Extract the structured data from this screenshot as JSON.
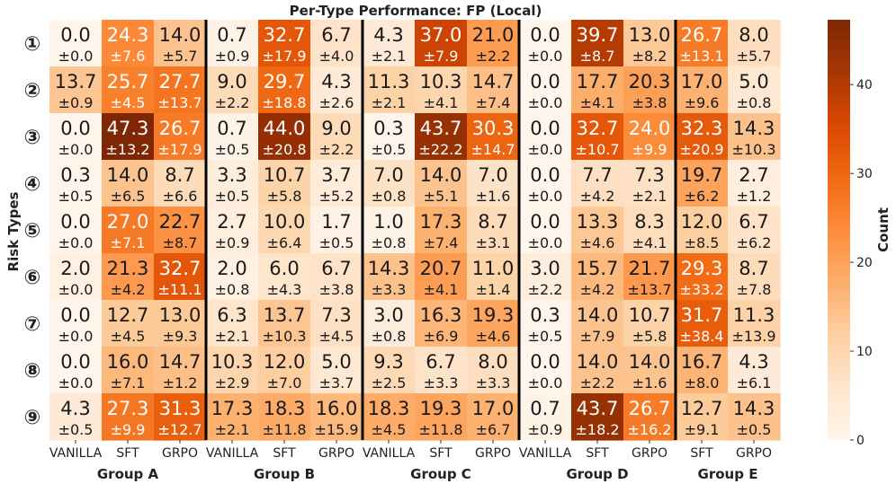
{
  "chart_data": {
    "type": "heatmap",
    "title": "Per-Type Performance: FP (Local)",
    "ylabel": "Risk Types",
    "row_labels": [
      "①",
      "②",
      "③",
      "④",
      "⑤",
      "⑥",
      "⑦",
      "⑧",
      "⑨"
    ],
    "columns": [
      {
        "group": "Group A",
        "label": "VANILLA"
      },
      {
        "group": "Group A",
        "label": "SFT"
      },
      {
        "group": "Group A",
        "label": "GRPO"
      },
      {
        "group": "Group B",
        "label": "VANILLA"
      },
      {
        "group": "Group B",
        "label": "SFT"
      },
      {
        "group": "Group B",
        "label": "GRPO"
      },
      {
        "group": "Group C",
        "label": "VANILLA"
      },
      {
        "group": "Group C",
        "label": "SFT"
      },
      {
        "group": "Group C",
        "label": "GRPO"
      },
      {
        "group": "Group D",
        "label": "VANILLA"
      },
      {
        "group": "Group D",
        "label": "SFT"
      },
      {
        "group": "Group D",
        "label": "GRPO"
      },
      {
        "group": "Group E",
        "label": "SFT"
      },
      {
        "group": "Group E",
        "label": "GRPO"
      }
    ],
    "groups": [
      "Group A",
      "Group B",
      "Group C",
      "Group D",
      "Group E"
    ],
    "values": [
      [
        "0.0",
        "24.3",
        "14.0",
        "0.7",
        "32.7",
        "6.7",
        "4.3",
        "37.0",
        "21.0",
        "0.0",
        "39.7",
        "13.0",
        "26.7",
        "8.0"
      ],
      [
        "13.7",
        "25.7",
        "27.7",
        "9.0",
        "29.7",
        "4.3",
        "11.3",
        "10.3",
        "14.7",
        "0.0",
        "17.7",
        "20.3",
        "17.0",
        "5.0"
      ],
      [
        "0.0",
        "47.3",
        "26.7",
        "0.7",
        "44.0",
        "9.0",
        "0.3",
        "43.7",
        "30.3",
        "0.0",
        "32.7",
        "24.0",
        "32.3",
        "14.3"
      ],
      [
        "0.3",
        "14.0",
        "8.7",
        "3.3",
        "10.7",
        "3.7",
        "7.0",
        "14.0",
        "7.0",
        "0.0",
        "7.7",
        "7.3",
        "19.7",
        "2.7"
      ],
      [
        "0.0",
        "27.0",
        "22.7",
        "2.7",
        "10.0",
        "1.7",
        "1.0",
        "17.3",
        "8.7",
        "0.0",
        "13.3",
        "8.3",
        "12.0",
        "6.7"
      ],
      [
        "2.0",
        "21.3",
        "32.7",
        "2.0",
        "6.0",
        "6.7",
        "14.3",
        "20.7",
        "11.0",
        "3.0",
        "15.7",
        "21.7",
        "29.3",
        "8.7"
      ],
      [
        "0.0",
        "12.7",
        "13.0",
        "6.3",
        "13.7",
        "7.3",
        "3.0",
        "16.3",
        "19.3",
        "0.3",
        "14.0",
        "10.7",
        "31.7",
        "11.3"
      ],
      [
        "0.0",
        "16.0",
        "14.7",
        "10.3",
        "12.0",
        "5.0",
        "9.3",
        "6.7",
        "8.0",
        "0.0",
        "14.0",
        "14.0",
        "16.7",
        "4.3"
      ],
      [
        "4.3",
        "27.3",
        "31.3",
        "17.3",
        "18.3",
        "16.0",
        "18.3",
        "19.3",
        "17.0",
        "0.7",
        "43.7",
        "26.7",
        "12.7",
        "14.3"
      ]
    ],
    "errors": [
      [
        "±0.0",
        "±7.6",
        "±5.7",
        "±0.9",
        "±17.9",
        "±4.0",
        "±2.1",
        "±7.9",
        "±2.2",
        "±0.0",
        "±8.7",
        "±8.2",
        "±13.1",
        "±5.7"
      ],
      [
        "±0.9",
        "±4.5",
        "±13.7",
        "±2.2",
        "±18.8",
        "±2.6",
        "±2.1",
        "±4.1",
        "±7.4",
        "±0.0",
        "±4.1",
        "±3.8",
        "±9.6",
        "±0.8"
      ],
      [
        "±0.0",
        "±13.2",
        "±17.9",
        "±0.5",
        "±20.8",
        "±2.2",
        "±0.5",
        "±22.2",
        "±14.7",
        "±0.0",
        "±10.7",
        "±9.9",
        "±20.9",
        "±10.3"
      ],
      [
        "±0.5",
        "±6.5",
        "±6.6",
        "±0.5",
        "±5.8",
        "±5.2",
        "±0.8",
        "±5.1",
        "±1.6",
        "±0.0",
        "±4.2",
        "±2.1",
        "±6.2",
        "±1.2"
      ],
      [
        "±0.0",
        "±7.1",
        "±8.7",
        "±0.9",
        "±6.4",
        "±0.5",
        "±0.8",
        "±7.4",
        "±3.1",
        "±0.0",
        "±4.6",
        "±4.1",
        "±8.5",
        "±6.2"
      ],
      [
        "±0.0",
        "±4.2",
        "±11.1",
        "±0.8",
        "±4.3",
        "±3.8",
        "±3.3",
        "±4.1",
        "±1.4",
        "±2.2",
        "±4.2",
        "±13.7",
        "±33.2",
        "±7.8"
      ],
      [
        "±0.0",
        "±4.5",
        "±9.3",
        "±2.1",
        "±10.3",
        "±4.5",
        "±0.8",
        "±6.9",
        "±4.6",
        "±0.5",
        "±7.9",
        "±5.8",
        "±38.4",
        "±13.9"
      ],
      [
        "±0.0",
        "±7.1",
        "±1.2",
        "±2.9",
        "±7.0",
        "±3.7",
        "±2.5",
        "±3.3",
        "±3.3",
        "±0.0",
        "±2.2",
        "±1.6",
        "±8.0",
        "±6.1"
      ],
      [
        "±0.5",
        "±9.9",
        "±12.7",
        "±2.1",
        "±11.8",
        "±15.9",
        "±4.5",
        "±11.8",
        "±6.7",
        "±0.9",
        "±18.2",
        "±16.2",
        "±9.1",
        "±0.5"
      ]
    ],
    "colorbar": {
      "label": "Count",
      "range": [
        0,
        47.3
      ],
      "ticks": [
        "0",
        "10",
        "20",
        "30",
        "40"
      ],
      "colormap": [
        "#fff5eb",
        "#fee6ce",
        "#fdd0a2",
        "#fdae6b",
        "#fd8d3c",
        "#f16913",
        "#d94801",
        "#a63603",
        "#7f2704"
      ]
    }
  }
}
